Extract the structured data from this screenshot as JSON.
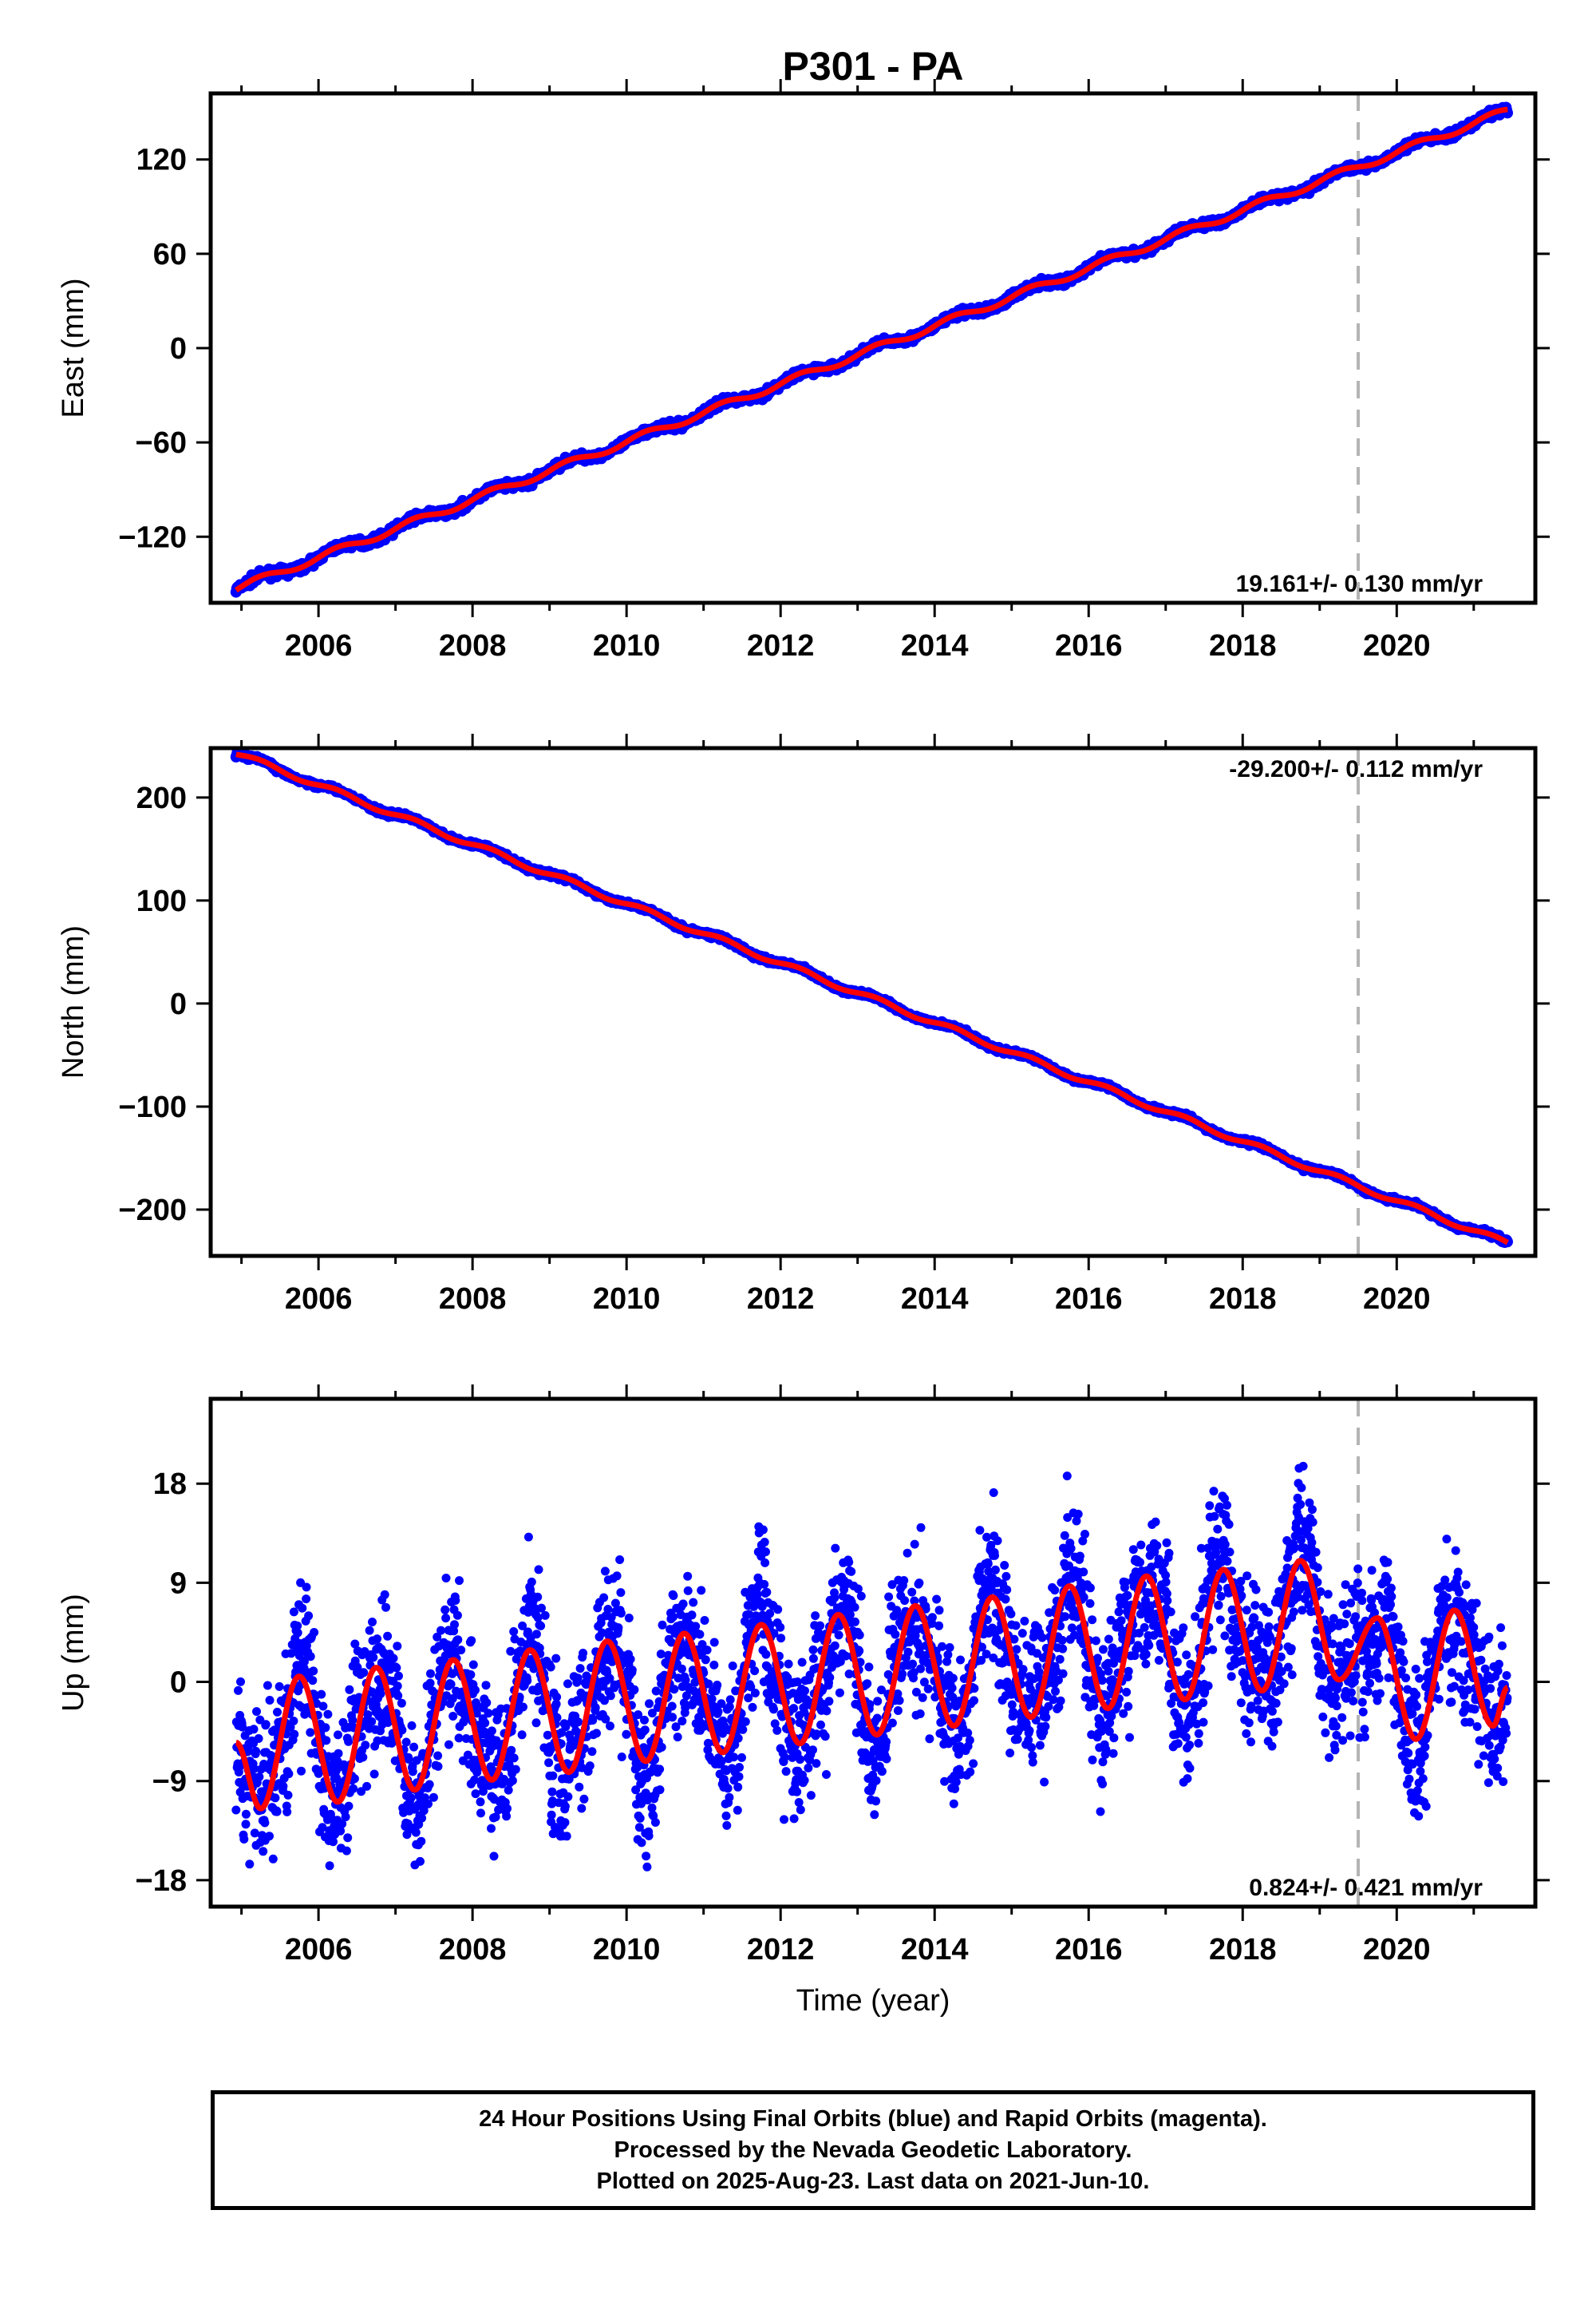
{
  "title": "P301 - PA",
  "colors": {
    "data_points": "#0000ff",
    "fit_line": "#ff0000",
    "marker_line": "#b4b4b4",
    "frame": "#000000"
  },
  "xlabel": "Time (year)",
  "chart_data": [
    {
      "type": "scatter",
      "name": "east",
      "ylabel": "East (mm)",
      "rate_label": "19.161+/- 0.130 mm/yr",
      "rate_position": "bottom-right",
      "xlim": [
        2004.6,
        2021.8
      ],
      "ylim": [
        -162,
        162
      ],
      "x_ticks": [
        2006,
        2008,
        2010,
        2012,
        2014,
        2016,
        2018,
        2020
      ],
      "y_ticks": [
        -120,
        -60,
        0,
        60,
        120
      ],
      "y_tick_labels": [
        "−120",
        "−60",
        "0",
        "60",
        "120"
      ],
      "marker_line_x": 2019.5,
      "fit": {
        "trend": [
          [
            2004.93,
            -153
          ],
          [
            2021.44,
            151
          ]
        ],
        "seasonal_amplitude": 2.2,
        "noise": 1.8
      }
    },
    {
      "type": "scatter",
      "name": "north",
      "ylabel": "North (mm)",
      "rate_label": "-29.200+/- 0.112 mm/yr",
      "rate_position": "top-right",
      "xlim": [
        2004.6,
        2021.8
      ],
      "ylim": [
        -245,
        248
      ],
      "x_ticks": [
        2006,
        2008,
        2010,
        2012,
        2014,
        2016,
        2018,
        2020
      ],
      "y_ticks": [
        -200,
        -100,
        0,
        100,
        200
      ],
      "y_tick_labels": [
        "−200",
        "−100",
        "0",
        "100",
        "200"
      ],
      "marker_line_x": 2019.5,
      "fit": {
        "trend": [
          [
            2004.93,
            243
          ],
          [
            2021.44,
            -233
          ]
        ],
        "seasonal_amplitude": 2.5,
        "noise": 1.6
      }
    },
    {
      "type": "scatter",
      "name": "up",
      "ylabel": "Up (mm)",
      "rate_label": "0.824+/- 0.421 mm/yr",
      "rate_position": "bottom-right",
      "xlim": [
        2004.6,
        2021.8
      ],
      "ylim": [
        -20.4,
        25.7
      ],
      "x_ticks": [
        2006,
        2008,
        2010,
        2012,
        2014,
        2016,
        2018,
        2020
      ],
      "y_ticks": [
        -18,
        -9,
        0,
        9,
        18
      ],
      "y_tick_labels": [
        "−18",
        "−9",
        "0",
        "9",
        "18"
      ],
      "marker_line_x": 2019.5,
      "fit": {
        "peaks": [
          [
            2005.75,
            0.5
          ],
          [
            2006.75,
            1.3
          ],
          [
            2007.75,
            2.0
          ],
          [
            2008.75,
            2.9
          ],
          [
            2009.75,
            3.7
          ],
          [
            2010.75,
            4.4
          ],
          [
            2011.75,
            5.2
          ],
          [
            2012.75,
            6.1
          ],
          [
            2013.75,
            6.9
          ],
          [
            2014.75,
            7.7
          ],
          [
            2015.75,
            8.7
          ],
          [
            2016.75,
            9.6
          ],
          [
            2017.75,
            10.2
          ],
          [
            2018.75,
            11.0
          ],
          [
            2019.75,
            5.8
          ],
          [
            2020.75,
            6.5
          ]
        ],
        "troughs": [
          [
            2005.25,
            -11.5
          ],
          [
            2006.25,
            -10.9
          ],
          [
            2007.25,
            -9.8
          ],
          [
            2008.25,
            -8.9
          ],
          [
            2009.25,
            -8.2
          ],
          [
            2010.25,
            -7.2
          ],
          [
            2011.25,
            -6.4
          ],
          [
            2012.25,
            -5.6
          ],
          [
            2013.25,
            -4.8
          ],
          [
            2014.25,
            -4.0
          ],
          [
            2015.25,
            -3.2
          ],
          [
            2016.25,
            -2.4
          ],
          [
            2017.25,
            -1.6
          ],
          [
            2018.25,
            -0.8
          ],
          [
            2019.25,
            0.2
          ],
          [
            2020.25,
            -5.2
          ],
          [
            2021.25,
            -4.0
          ]
        ],
        "start": [
          2004.93,
          -5.5
        ],
        "end": [
          2021.44,
          -0.5
        ],
        "scatter_spread": 4.5
      }
    }
  ],
  "caption": {
    "line1": "24 Hour Positions Using Final Orbits (blue) and Rapid Orbits (magenta).",
    "line2": "Processed by the Nevada Geodetic Laboratory.",
    "line3": "Plotted on 2025-Aug-23. Last data on 2021-Jun-10."
  }
}
